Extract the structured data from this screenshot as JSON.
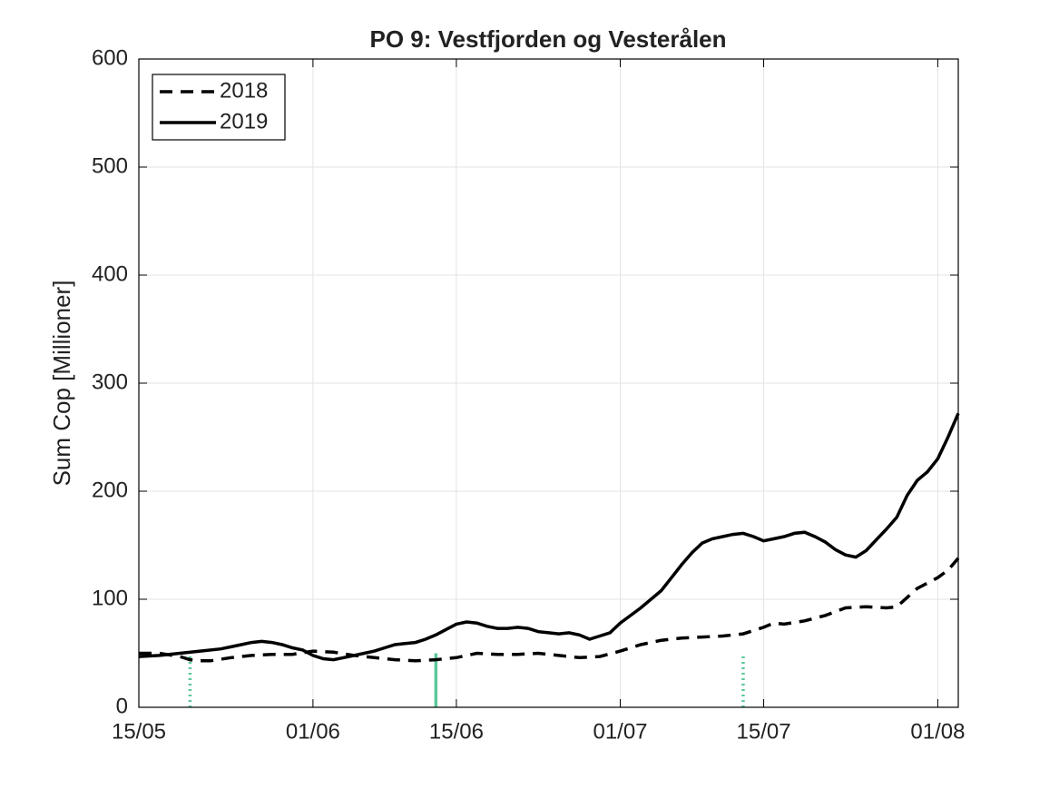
{
  "chart_data": {
    "type": "line",
    "title": "PO 9: Vestfjorden og Vesterålen",
    "ylabel": "Sum Cop [Millioner]",
    "xlim": [
      135,
      215
    ],
    "ylim": [
      0,
      600
    ],
    "xticks": [
      {
        "value": 135,
        "label": "15/05"
      },
      {
        "value": 152,
        "label": "01/06"
      },
      {
        "value": 166,
        "label": "15/06"
      },
      {
        "value": 182,
        "label": "01/07"
      },
      {
        "value": 196,
        "label": "15/07"
      },
      {
        "value": 213,
        "label": "01/08"
      }
    ],
    "yticks": [
      0,
      100,
      200,
      300,
      400,
      500,
      600
    ],
    "grid": true,
    "legend": "upper left",
    "series": [
      {
        "name": "2018",
        "color": "#000000",
        "style": "dashed",
        "x": [
          135,
          137,
          139,
          140,
          141,
          142,
          144,
          146,
          148,
          150,
          152,
          154,
          156,
          158,
          160,
          162,
          164,
          166,
          168,
          170,
          172,
          174,
          176,
          178,
          180,
          182,
          184,
          186,
          188,
          190,
          192,
          194,
          196,
          197,
          198,
          200,
          202,
          204,
          206,
          208,
          209,
          211,
          212,
          213,
          214,
          215
        ],
        "values": [
          50,
          50,
          47,
          44,
          43,
          43,
          46,
          48,
          49,
          49,
          52,
          51,
          48,
          46,
          44,
          43,
          44,
          46,
          50,
          49,
          49,
          50,
          48,
          46,
          47,
          52,
          58,
          62,
          64,
          65,
          66,
          68,
          74,
          78,
          77,
          80,
          85,
          92,
          93,
          92,
          93,
          110,
          115,
          120,
          127,
          138
        ]
      },
      {
        "name": "2019",
        "color": "#000000",
        "style": "solid",
        "x": [
          135,
          137,
          139,
          141,
          143,
          144,
          145,
          146,
          147,
          148,
          149,
          150,
          151,
          152,
          153,
          154,
          155,
          156,
          157,
          158,
          159,
          160,
          161,
          162,
          163,
          164,
          165,
          166,
          167,
          168,
          169,
          170,
          171,
          172,
          173,
          174,
          175,
          176,
          177,
          178,
          179,
          180,
          181,
          182,
          183,
          184,
          185,
          186,
          187,
          188,
          189,
          190,
          191,
          192,
          193,
          194,
          195,
          196,
          197,
          198,
          199,
          200,
          201,
          202,
          203,
          204,
          205,
          206,
          207,
          208,
          209,
          210,
          211,
          212,
          213,
          214,
          215
        ],
        "values": [
          47,
          48,
          50,
          52,
          54,
          56,
          58,
          60,
          61,
          60,
          58,
          55,
          53,
          48,
          45,
          44,
          46,
          48,
          50,
          52,
          55,
          58,
          59,
          60,
          63,
          67,
          72,
          77,
          79,
          78,
          75,
          73,
          73,
          74,
          73,
          70,
          69,
          68,
          69,
          67,
          63,
          66,
          69,
          78,
          85,
          92,
          100,
          108,
          120,
          132,
          143,
          152,
          156,
          158,
          160,
          161,
          158,
          154,
          156,
          158,
          161,
          162,
          158,
          153,
          146,
          141,
          139,
          145,
          155,
          165,
          176,
          196,
          210,
          218,
          230,
          250,
          272
        ]
      }
    ],
    "vlines": {
      "color": "#5cc89a",
      "x": [
        140,
        164,
        194
      ],
      "values": [
        50,
        50,
        50
      ],
      "styles": [
        "dotted",
        "solid",
        "dotted"
      ]
    }
  }
}
